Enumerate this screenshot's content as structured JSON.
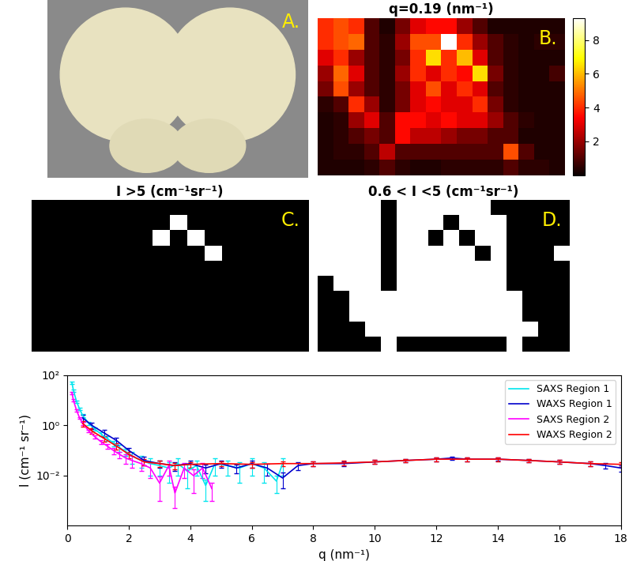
{
  "photo": {
    "annotations": [
      "A."
    ]
  },
  "chart_data": [
    {
      "type": "heatmap",
      "title": "q=0.19 (nm⁻¹)",
      "annotations": [
        "B."
      ],
      "tick_labels": false,
      "cells": [
        [
          4,
          4.5,
          4,
          1,
          0.3,
          1.5,
          3,
          3.5,
          3.5,
          2,
          1,
          0.3,
          0.3,
          0.3,
          0.3,
          0.3
        ],
        [
          4,
          4.5,
          4.8,
          1,
          0.5,
          2,
          4.5,
          4.5,
          9.3,
          4,
          2,
          1,
          0.5,
          0.3,
          0.5,
          0.5
        ],
        [
          3,
          4,
          2,
          1,
          0.5,
          1.5,
          4,
          6.5,
          4,
          6,
          3,
          1,
          0.5,
          0.3,
          0.3,
          0.3
        ],
        [
          2,
          4.8,
          3,
          1,
          0.5,
          2,
          4,
          3,
          4,
          3.5,
          6.5,
          1.5,
          0.5,
          0.3,
          0.3,
          0.8
        ],
        [
          1.5,
          4.5,
          2,
          1,
          0.5,
          1.5,
          3,
          4.5,
          3,
          4,
          3,
          1,
          0.5,
          0.3,
          0.3,
          0.3
        ],
        [
          0.5,
          1,
          4,
          2,
          0.5,
          1.5,
          3,
          3.5,
          3,
          3,
          4,
          1.5,
          0.5,
          0.3,
          0.3,
          0.3
        ],
        [
          0.3,
          0.5,
          2,
          3,
          1,
          3.5,
          3.5,
          3,
          3.5,
          3,
          3,
          2,
          1,
          0.5,
          0.3,
          0.3
        ],
        [
          0.3,
          0.5,
          1,
          1.5,
          1,
          3.5,
          2.5,
          2.5,
          2,
          1.5,
          1.5,
          1,
          1,
          0.3,
          0.3,
          0.3
        ],
        [
          0.3,
          0.5,
          0.5,
          1,
          2.5,
          1,
          1,
          1,
          1,
          1,
          1,
          1,
          4.5,
          1,
          0.3,
          0.3
        ],
        [
          0.3,
          0.3,
          0.3,
          0.5,
          1,
          0.5,
          0.3,
          0.3,
          0.5,
          0.5,
          0.5,
          0.5,
          1,
          0.5,
          0.5,
          0.3
        ]
      ],
      "colorbar": {
        "range": [
          0,
          9.3
        ],
        "ticks": [
          2,
          4,
          6,
          8
        ]
      }
    },
    {
      "type": "heatmap",
      "title": "I >5 (cm⁻¹sr⁻¹)",
      "annotations": [
        "C."
      ],
      "tick_labels": false,
      "cells": [
        [
          0,
          0,
          0,
          0,
          0,
          0,
          0,
          0,
          0,
          0,
          0,
          0,
          0,
          0,
          0,
          0
        ],
        [
          0,
          0,
          0,
          0,
          0,
          0,
          0,
          0,
          1,
          0,
          0,
          0,
          0,
          0,
          0,
          0
        ],
        [
          0,
          0,
          0,
          0,
          0,
          0,
          0,
          1,
          0,
          1,
          0,
          0,
          0,
          0,
          0,
          0
        ],
        [
          0,
          0,
          0,
          0,
          0,
          0,
          0,
          0,
          0,
          0,
          1,
          0,
          0,
          0,
          0,
          0
        ],
        [
          0,
          0,
          0,
          0,
          0,
          0,
          0,
          0,
          0,
          0,
          0,
          0,
          0,
          0,
          0,
          0
        ],
        [
          0,
          0,
          0,
          0,
          0,
          0,
          0,
          0,
          0,
          0,
          0,
          0,
          0,
          0,
          0,
          0
        ],
        [
          0,
          0,
          0,
          0,
          0,
          0,
          0,
          0,
          0,
          0,
          0,
          0,
          0,
          0,
          0,
          0
        ],
        [
          0,
          0,
          0,
          0,
          0,
          0,
          0,
          0,
          0,
          0,
          0,
          0,
          0,
          0,
          0,
          0
        ],
        [
          0,
          0,
          0,
          0,
          0,
          0,
          0,
          0,
          0,
          0,
          0,
          0,
          0,
          0,
          0,
          0
        ],
        [
          0,
          0,
          0,
          0,
          0,
          0,
          0,
          0,
          0,
          0,
          0,
          0,
          0,
          0,
          0,
          0
        ]
      ]
    },
    {
      "type": "heatmap",
      "title": "0.6 < I <5 (cm⁻¹sr⁻¹)",
      "annotations": [
        "D."
      ],
      "tick_labels": false,
      "cells": [
        [
          1,
          1,
          1,
          1,
          0,
          1,
          1,
          1,
          1,
          1,
          1,
          0,
          0,
          0,
          0,
          0
        ],
        [
          1,
          1,
          1,
          1,
          0,
          1,
          1,
          1,
          0,
          1,
          1,
          1,
          0,
          0,
          0,
          0
        ],
        [
          1,
          1,
          1,
          1,
          0,
          1,
          1,
          0,
          1,
          0,
          1,
          1,
          0,
          0,
          0,
          0
        ],
        [
          1,
          1,
          1,
          1,
          0,
          1,
          1,
          1,
          1,
          1,
          0,
          1,
          0,
          0,
          0,
          1
        ],
        [
          1,
          1,
          1,
          1,
          0,
          1,
          1,
          1,
          1,
          1,
          1,
          1,
          0,
          0,
          0,
          0
        ],
        [
          0,
          1,
          1,
          1,
          0,
          1,
          1,
          1,
          1,
          1,
          1,
          1,
          0,
          0,
          0,
          0
        ],
        [
          0,
          0,
          1,
          1,
          1,
          1,
          1,
          1,
          1,
          1,
          1,
          1,
          1,
          0,
          0,
          0
        ],
        [
          0,
          0,
          1,
          1,
          1,
          1,
          1,
          1,
          1,
          1,
          1,
          1,
          1,
          0,
          0,
          0
        ],
        [
          0,
          0,
          0,
          1,
          1,
          1,
          1,
          1,
          1,
          1,
          1,
          1,
          1,
          1,
          0,
          0
        ],
        [
          0,
          0,
          0,
          0,
          1,
          0,
          0,
          0,
          0,
          0,
          0,
          0,
          1,
          0,
          0,
          0
        ]
      ]
    },
    {
      "type": "line",
      "x_label": "q (nm⁻¹)",
      "y_label": "I (cm⁻¹ sr⁻¹)",
      "log": "y",
      "legend": "upper right",
      "xlim": [
        0,
        18
      ],
      "xticks": [
        0,
        2,
        4,
        6,
        8,
        10,
        12,
        14,
        16,
        18
      ],
      "ylim": [
        0.0001,
        100
      ],
      "yticks": [
        {
          "value": 0.01,
          "label": "10⁻²"
        },
        {
          "value": 1,
          "label": "10⁰"
        },
        {
          "value": 100,
          "label": "10²"
        }
      ],
      "series": [
        {
          "name": "SAXS Region 1",
          "color": "#00e5ee",
          "x": [
            0.15,
            0.2,
            0.3,
            0.4,
            0.5,
            0.7,
            0.9,
            1.1,
            1.3,
            1.5,
            1.7,
            1.9,
            2.1,
            2.4,
            2.7,
            3.0,
            3.3,
            3.6,
            3.9,
            4.2,
            4.5,
            4.8,
            5.2,
            5.6,
            6.0,
            6.4,
            6.8,
            7.0
          ],
          "values": [
            50,
            25,
            9,
            4.5,
            2.5,
            1.2,
            0.7,
            0.45,
            0.3,
            0.2,
            0.13,
            0.09,
            0.06,
            0.04,
            0.03,
            0.025,
            0.02,
            0.03,
            0.015,
            0.025,
            0.004,
            0.03,
            0.025,
            0.02,
            0.03,
            0.02,
            0.006,
            0.03
          ],
          "errors": [
            5,
            3,
            1,
            0.5,
            0.3,
            0.15,
            0.1,
            0.08,
            0.06,
            0.05,
            0.04,
            0.03,
            0.03,
            0.02,
            0.02,
            0.015,
            0.015,
            0.02,
            0.012,
            0.015,
            0.003,
            0.02,
            0.015,
            0.015,
            0.02,
            0.015,
            0.004,
            0.02
          ]
        },
        {
          "name": "WAXS Region 1",
          "color": "#0000cc",
          "x": [
            0.5,
            0.8,
            1.2,
            1.6,
            2.0,
            2.5,
            3.0,
            3.5,
            4.0,
            4.5,
            5.0,
            5.5,
            6.0,
            6.5,
            7.0,
            7.5,
            8,
            9,
            10,
            11,
            12,
            12.5,
            13,
            14,
            15,
            16,
            17,
            17.5,
            18
          ],
          "values": [
            2,
            1,
            0.5,
            0.25,
            0.1,
            0.04,
            0.03,
            0.025,
            0.03,
            0.02,
            0.03,
            0.02,
            0.03,
            0.02,
            0.008,
            0.025,
            0.03,
            0.03,
            0.035,
            0.04,
            0.045,
            0.05,
            0.045,
            0.045,
            0.04,
            0.035,
            0.03,
            0.025,
            0.02
          ],
          "errors": [
            0.6,
            0.3,
            0.15,
            0.08,
            0.03,
            0.015,
            0.01,
            0.01,
            0.01,
            0.008,
            0.01,
            0.008,
            0.01,
            0.01,
            0.005,
            0.008,
            0.006,
            0.006,
            0.006,
            0.007,
            0.008,
            0.008,
            0.008,
            0.007,
            0.007,
            0.006,
            0.006,
            0.006,
            0.006
          ]
        },
        {
          "name": "SAXS Region 2",
          "color": "#ff00ff",
          "x": [
            0.15,
            0.2,
            0.3,
            0.4,
            0.5,
            0.7,
            0.9,
            1.1,
            1.3,
            1.5,
            1.7,
            1.9,
            2.1,
            2.4,
            2.7,
            3.0,
            3.3,
            3.5,
            3.8,
            4.1,
            4.4,
            4.7
          ],
          "values": [
            20,
            10,
            4,
            2,
            1.2,
            0.6,
            0.35,
            0.22,
            0.15,
            0.1,
            0.07,
            0.05,
            0.04,
            0.03,
            0.02,
            0.005,
            0.025,
            0.002,
            0.02,
            0.01,
            0.02,
            0.003
          ],
          "errors": [
            2,
            1,
            0.4,
            0.2,
            0.15,
            0.08,
            0.05,
            0.04,
            0.03,
            0.03,
            0.02,
            0.02,
            0.02,
            0.015,
            0.012,
            0.004,
            0.015,
            0.0015,
            0.012,
            0.008,
            0.012,
            0.002
          ]
        },
        {
          "name": "WAXS Region 2",
          "color": "#ff0000",
          "x": [
            0.5,
            0.8,
            1.2,
            1.6,
            2.0,
            2.5,
            3,
            3.5,
            4,
            5,
            6,
            7,
            8,
            9,
            10,
            11,
            12,
            13,
            14,
            15,
            16,
            17,
            18
          ],
          "values": [
            1.2,
            0.6,
            0.3,
            0.15,
            0.07,
            0.035,
            0.03,
            0.025,
            0.028,
            0.03,
            0.028,
            0.03,
            0.03,
            0.032,
            0.035,
            0.04,
            0.045,
            0.045,
            0.045,
            0.04,
            0.035,
            0.03,
            0.028
          ],
          "errors": [
            0.3,
            0.15,
            0.08,
            0.04,
            0.02,
            0.01,
            0.008,
            0.007,
            0.007,
            0.007,
            0.007,
            0.007,
            0.006,
            0.006,
            0.006,
            0.007,
            0.008,
            0.008,
            0.008,
            0.007,
            0.006,
            0.006,
            0.006
          ]
        }
      ]
    }
  ]
}
